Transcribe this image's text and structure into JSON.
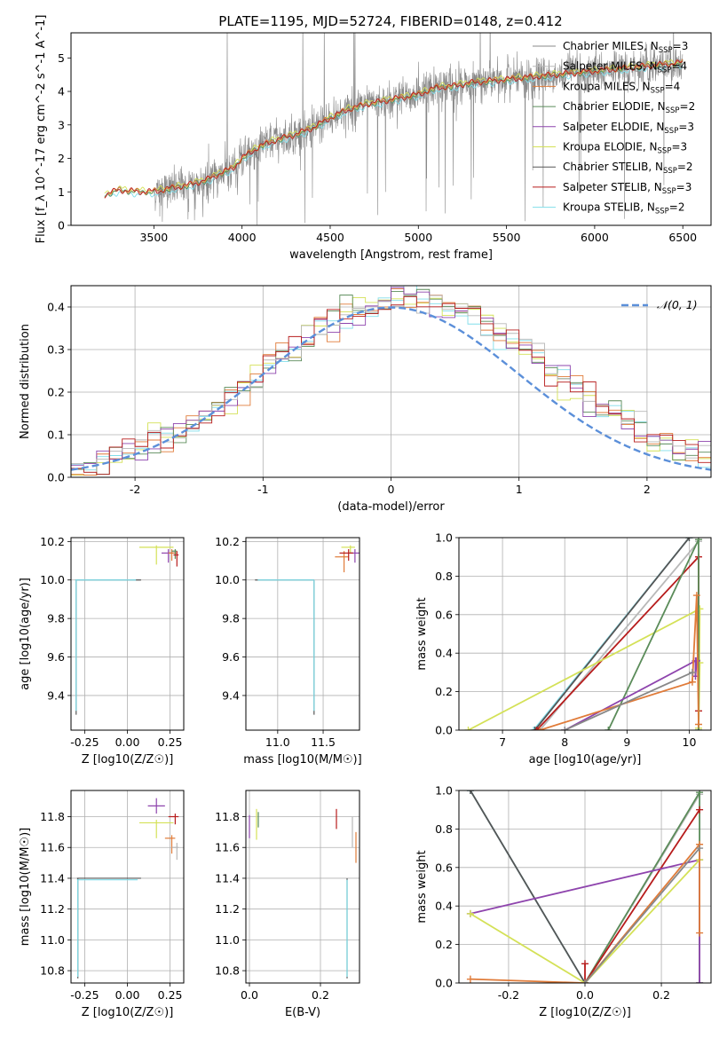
{
  "figure_title": "PLATE=1195, MJD=52724, FIBERID=0148, z=0.412",
  "colors": {
    "chabrier_miles": "#888888",
    "salpeter_miles": "#b8b8b8",
    "kroupa_miles": "#e07b39",
    "chabrier_elodie": "#5b8c5a",
    "salpeter_elodie": "#8e44ad",
    "kroupa_elodie": "#d4e157",
    "chabrier_stelib": "#555555",
    "salpeter_stelib": "#b71c1c",
    "kroupa_stelib": "#80deea",
    "gaussian": "#5b8fd9"
  },
  "chart_data": [
    {
      "id": "spectrum",
      "type": "line",
      "title": "PLATE=1195, MJD=52724, FIBERID=0148, z=0.412",
      "xlabel": "wavelength [Angstrom, rest frame]",
      "ylabel": "Flux [f_λ 10^-17 erg cm^-2 s^-1 A^-1]",
      "xlim": [
        3030,
        6660
      ],
      "ylim": [
        0,
        5.75
      ],
      "xticks": [
        3500,
        4000,
        4500,
        5000,
        5500,
        6000,
        6500
      ],
      "yticks": [
        0,
        1,
        2,
        3,
        4,
        5
      ],
      "grid": false,
      "legend_position": "top-right",
      "series": [
        {
          "name": "Chabrier MILES, N_SSP=3"
        },
        {
          "name": "Salpeter MILES, N_SSP=4"
        },
        {
          "name": "Kroupa MILES, N_SSP=4"
        },
        {
          "name": "Chabrier ELODIE, N_SSP=2"
        },
        {
          "name": "Salpeter ELODIE, N_SSP=3"
        },
        {
          "name": "Kroupa ELODIE, N_SSP=3"
        },
        {
          "name": "Chabrier STELIB, N_SSP=2"
        },
        {
          "name": "Salpeter STELIB, N_SSP=3"
        },
        {
          "name": "Kroupa STELIB, N_SSP=2"
        }
      ],
      "model_curve": {
        "x": [
          3200,
          3220,
          3300,
          3400,
          3500,
          3600,
          3700,
          3800,
          3900,
          3950,
          4000,
          4100,
          4200,
          4300,
          4400,
          4500,
          4600,
          4700,
          4800,
          4900,
          5000,
          5100,
          5200,
          5300,
          5400,
          5500,
          5600,
          5700,
          5800,
          5900,
          6000,
          6100,
          6200,
          6300,
          6400,
          6500
        ],
        "y": [
          0,
          0.9,
          1.05,
          1.0,
          1.0,
          1.1,
          1.2,
          1.35,
          1.6,
          1.7,
          2.0,
          2.35,
          2.55,
          2.7,
          2.9,
          3.2,
          3.45,
          3.6,
          3.7,
          3.8,
          3.9,
          4.1,
          4.15,
          4.25,
          4.3,
          4.35,
          4.4,
          4.45,
          4.5,
          4.55,
          4.6,
          4.65,
          4.7,
          4.75,
          4.8,
          4.85
        ]
      },
      "data_start_wavelength": 3500
    },
    {
      "id": "residuals",
      "type": "line",
      "xlabel": "(data-model)/error",
      "ylabel": "Normed distribution",
      "xlim": [
        -2.5,
        2.5
      ],
      "ylim": [
        0,
        0.45
      ],
      "xticks": [
        -2,
        -1,
        0,
        1,
        2
      ],
      "yticks": [
        0.0,
        0.1,
        0.2,
        0.3,
        0.4
      ],
      "grid": true,
      "legend_position": "top-right",
      "legend": "𝒩(0, 1)",
      "bin_width": 0.1
    },
    {
      "id": "age-vs-Z",
      "type": "scatter",
      "xlabel": "Z [log10(Z/Z☉)]",
      "ylabel": "age  [log10(age/yr)]",
      "xlim": [
        -0.33,
        0.33
      ],
      "ylim": [
        9.22,
        10.22
      ],
      "xticks": [
        -0.25,
        0.0,
        0.25
      ],
      "yticks": [
        9.4,
        9.6,
        9.8,
        10.0,
        10.2
      ],
      "grid": true,
      "points": [
        {
          "x": -0.3,
          "xerr": [
            0.005,
            0.38
          ],
          "y": 10.0,
          "yerr": [
            0.7,
            0.0
          ],
          "series": "Chabrier STELIB"
        },
        {
          "x": -0.3,
          "xerr": [
            0.005,
            0.35
          ],
          "y": 10.0,
          "yerr": [
            0.68,
            0.0
          ],
          "series": "Kroupa STELIB"
        },
        {
          "x": 0.17,
          "xerr": [
            0.1,
            0.1
          ],
          "y": 10.17,
          "yerr": [
            0.09,
            0.01
          ],
          "series": "Kroupa ELODIE"
        },
        {
          "x": 0.24,
          "xerr": [
            0.04,
            0.04
          ],
          "y": 10.14,
          "yerr": [
            0.05,
            0.02
          ],
          "series": "Salpeter ELODIE"
        },
        {
          "x": 0.26,
          "xerr": [
            0.02,
            0.03
          ],
          "y": 10.14,
          "yerr": [
            0.04,
            0.02
          ],
          "series": "Kroupa MILES"
        },
        {
          "x": 0.28,
          "xerr": [
            0.02,
            0.01
          ],
          "y": 10.15,
          "yerr": [
            0.04,
            0.01
          ],
          "series": "Chabrier ELODIE"
        },
        {
          "x": 0.29,
          "xerr": [
            0.02,
            0.01
          ],
          "y": 10.13,
          "yerr": [
            0.06,
            0.02
          ],
          "series": "Salpeter STELIB"
        }
      ]
    },
    {
      "id": "age-vs-mass",
      "type": "scatter",
      "xlabel": "mass [log10(M/M☉)]",
      "ylabel": "",
      "xlim": [
        10.65,
        11.9
      ],
      "ylim": [
        9.22,
        10.22
      ],
      "xticks": [
        11.0,
        11.5
      ],
      "yticks": [
        9.4,
        9.6,
        9.8,
        10.0,
        10.2
      ],
      "grid": true,
      "points": [
        {
          "x": 11.4,
          "xerr": [
            0.65,
            0.0
          ],
          "y": 10.0,
          "yerr": [
            0.7,
            0.0
          ],
          "series": "Chabrier STELIB"
        },
        {
          "x": 11.4,
          "xerr": [
            0.62,
            0.0
          ],
          "y": 10.0,
          "yerr": [
            0.68,
            0.0
          ],
          "series": "Kroupa STELIB"
        },
        {
          "x": 11.8,
          "xerr": [
            0.1,
            0.05
          ],
          "y": 10.17,
          "yerr": [
            0.03,
            0.01
          ],
          "series": "Kroupa ELODIE"
        },
        {
          "x": 11.85,
          "xerr": [
            0.06,
            0.05
          ],
          "y": 10.14,
          "yerr": [
            0.05,
            0.02
          ],
          "series": "Salpeter ELODIE"
        },
        {
          "x": 11.73,
          "xerr": [
            0.1,
            0.05
          ],
          "y": 10.12,
          "yerr": [
            0.08,
            0.03
          ],
          "series": "Kroupa MILES"
        },
        {
          "x": 11.78,
          "xerr": [
            0.1,
            0.05
          ],
          "y": 10.14,
          "yerr": [
            0.04,
            0.02
          ],
          "series": "Salpeter STELIB"
        }
      ]
    },
    {
      "id": "mass-weight-vs-age",
      "type": "line",
      "xlabel": "age  [log10(age/yr)]",
      "ylabel": "mass weight",
      "xlim": [
        6.3,
        10.35
      ],
      "ylim": [
        0.0,
        1.0
      ],
      "xticks": [
        7,
        8,
        9,
        10
      ],
      "yticks": [
        0.0,
        0.2,
        0.4,
        0.6,
        0.8,
        1.0
      ],
      "grid": true,
      "series": [
        {
          "name": "Kroupa STELIB",
          "x": [
            7.5,
            10.0
          ],
          "y": [
            0.0,
            1.0
          ]
        },
        {
          "name": "Chabrier STELIB",
          "x": [
            7.52,
            10.0
          ],
          "y": [
            0.0,
            1.0
          ]
        },
        {
          "name": "Salpeter MILES",
          "x": [
            7.6,
            10.15
          ],
          "y": [
            0.0,
            0.98
          ]
        },
        {
          "name": "Salpeter STELIB",
          "x": [
            7.55,
            10.15,
            10.15
          ],
          "y": [
            0.0,
            0.9,
            0.1
          ]
        },
        {
          "name": "Kroupa ELODIE",
          "x": [
            6.45,
            10.17,
            10.15,
            10.17
          ],
          "y": [
            0.0,
            0.63,
            0.01,
            0.35
          ]
        },
        {
          "name": "Chabrier ELODIE",
          "x": [
            8.7,
            10.15,
            10.15
          ],
          "y": [
            0.0,
            0.99,
            0.0
          ]
        },
        {
          "name": "Salpeter ELODIE",
          "x": [
            8.0,
            10.1,
            10.1,
            10.12
          ],
          "y": [
            0.0,
            0.36,
            0.28,
            0.36
          ]
        },
        {
          "name": "Kroupa MILES",
          "x": [
            7.6,
            10.05,
            10.12,
            10.15
          ],
          "y": [
            0.0,
            0.25,
            0.7,
            0.03
          ]
        },
        {
          "name": "Chabrier MILES",
          "x": [
            8.0,
            10.05
          ],
          "y": [
            0.0,
            0.3
          ]
        }
      ]
    },
    {
      "id": "mass-vs-Z",
      "type": "scatter",
      "xlabel": "Z [log10(Z/Z☉)]",
      "ylabel": "mass [log10(M/M☉)]",
      "xlim": [
        -0.33,
        0.33
      ],
      "ylim": [
        10.72,
        11.97
      ],
      "xticks": [
        -0.25,
        0.0,
        0.25
      ],
      "yticks": [
        10.8,
        11.0,
        11.2,
        11.4,
        11.6,
        11.8
      ],
      "grid": true,
      "points": [
        {
          "x": -0.29,
          "xerr": [
            0.005,
            0.37
          ],
          "y": 11.4,
          "yerr": [
            0.65,
            0.0
          ],
          "series": "Chabrier STELIB"
        },
        {
          "x": -0.29,
          "xerr": [
            0.005,
            0.35
          ],
          "y": 11.39,
          "yerr": [
            0.63,
            0.0
          ],
          "series": "Kroupa STELIB"
        },
        {
          "x": 0.17,
          "xerr": [
            0.1,
            0.1
          ],
          "y": 11.76,
          "yerr": [
            0.1,
            0.02
          ],
          "series": "Kroupa ELODIE"
        },
        {
          "x": 0.17,
          "xerr": [
            0.05,
            0.05
          ],
          "y": 11.87,
          "yerr": [
            0.05,
            0.05
          ],
          "series": "Salpeter ELODIE"
        },
        {
          "x": 0.26,
          "xerr": [
            0.04,
            0.02
          ],
          "y": 11.66,
          "yerr": [
            0.1,
            0.02
          ],
          "series": "Kroupa MILES"
        },
        {
          "x": 0.28,
          "xerr": [
            0.04,
            0.02
          ],
          "y": 11.8,
          "yerr": [
            0.05,
            0.02
          ],
          "series": "Salpeter STELIB"
        },
        {
          "x": 0.29,
          "xerr": [
            0.03,
            0.01
          ],
          "y": 11.6,
          "yerr": [
            0.08,
            0.03
          ],
          "series": "Salpeter MILES"
        }
      ]
    },
    {
      "id": "mass-vs-EBV",
      "type": "scatter",
      "xlabel": "E(B-V)",
      "ylabel": "",
      "xlim": [
        -0.01,
        0.31
      ],
      "ylim": [
        10.72,
        11.97
      ],
      "xticks": [
        0.0,
        0.2
      ],
      "yticks": [
        10.8,
        11.0,
        11.2,
        11.4,
        11.6,
        11.8
      ],
      "grid": true,
      "points": [
        {
          "x": 0.275,
          "xerr": [
            0,
            0
          ],
          "y": 11.4,
          "yerr": [
            0.65,
            0.0
          ],
          "series": "Chabrier STELIB"
        },
        {
          "x": 0.275,
          "xerr": [
            0,
            0
          ],
          "y": 11.39,
          "yerr": [
            0.63,
            0.0
          ],
          "series": "Kroupa STELIB"
        },
        {
          "x": 0.0,
          "xerr": [
            0,
            0
          ],
          "y": 11.76,
          "yerr": [
            0.1,
            0.05
          ],
          "series": "Salpeter ELODIE"
        },
        {
          "x": 0.02,
          "xerr": [
            0,
            0
          ],
          "y": 11.75,
          "yerr": [
            0.1,
            0.1
          ],
          "series": "Kroupa ELODIE"
        },
        {
          "x": 0.025,
          "xerr": [
            0,
            0
          ],
          "y": 11.78,
          "yerr": [
            0.05,
            0.05
          ],
          "series": "Chabrier ELODIE"
        },
        {
          "x": 0.245,
          "xerr": [
            0,
            0
          ],
          "y": 11.8,
          "yerr": [
            0.08,
            0.05
          ],
          "series": "Salpeter STELIB"
        },
        {
          "x": 0.29,
          "xerr": [
            0,
            0
          ],
          "y": 11.7,
          "yerr": [
            0.1,
            0.1
          ],
          "series": "Salpeter MILES"
        },
        {
          "x": 0.3,
          "xerr": [
            0,
            0
          ],
          "y": 11.6,
          "yerr": [
            0.1,
            0.1
          ],
          "series": "Kroupa MILES"
        }
      ]
    },
    {
      "id": "mass-weight-vs-Z",
      "type": "line",
      "xlabel": "Z [log10(Z/Z☉)]",
      "ylabel": "mass weight",
      "xlim": [
        -0.33,
        0.33
      ],
      "ylim": [
        0.0,
        1.0
      ],
      "xticks": [
        -0.2,
        0.0,
        0.2
      ],
      "yticks": [
        0.0,
        0.2,
        0.4,
        0.6,
        0.8,
        1.0
      ],
      "grid": true,
      "series": [
        {
          "name": "Kroupa STELIB",
          "x": [
            -0.3,
            0.0
          ],
          "y": [
            1.0,
            0.0
          ]
        },
        {
          "name": "Chabrier STELIB",
          "x": [
            -0.3,
            0.0
          ],
          "y": [
            1.0,
            0.0
          ]
        },
        {
          "name": "Salpeter MILES",
          "x": [
            0.0,
            0.3
          ],
          "y": [
            0.0,
            0.98
          ]
        },
        {
          "name": "Chabrier ELODIE",
          "x": [
            0.0,
            0.3,
            0.3
          ],
          "y": [
            0.0,
            0.99,
            0.0
          ]
        },
        {
          "name": "Salpeter STELIB",
          "x": [
            0.0,
            0.0,
            0.3
          ],
          "y": [
            0.1,
            0.0,
            0.9
          ]
        },
        {
          "name": "Salpeter ELODIE",
          "x": [
            -0.3,
            0.3,
            0.3
          ],
          "y": [
            0.36,
            0.64,
            0.0
          ]
        },
        {
          "name": "Kroupa ELODIE",
          "x": [
            -0.3,
            0.0,
            0.3
          ],
          "y": [
            0.36,
            0.0,
            0.64
          ]
        },
        {
          "name": "Kroupa MILES",
          "x": [
            -0.3,
            0.0,
            0.3,
            0.3
          ],
          "y": [
            0.02,
            0.0,
            0.72,
            0.26
          ]
        },
        {
          "name": "Chabrier MILES",
          "x": [
            0.0,
            0.3
          ],
          "y": [
            0.0,
            0.7
          ]
        }
      ]
    }
  ]
}
